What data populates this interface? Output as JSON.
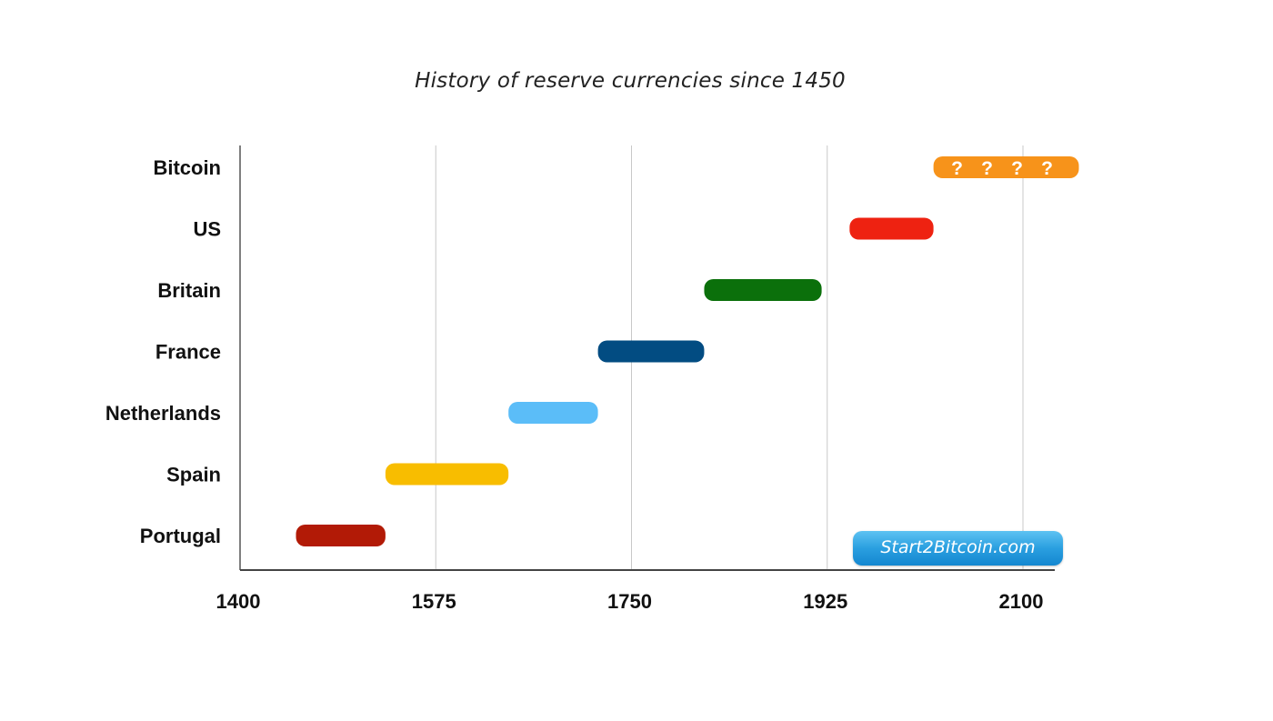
{
  "chart_data": {
    "type": "bar",
    "orientation": "horizontal-range",
    "title": "History of reserve currencies since 1450",
    "xlabel": "",
    "ylabel": "",
    "xlim": [
      1400,
      2100
    ],
    "x_ticks": [
      "1400",
      "1575",
      "1750",
      "1925",
      "2100"
    ],
    "grid": true,
    "categories": [
      "Bitcoin",
      "US",
      "Britain",
      "France",
      "Netherlands",
      "Spain",
      "Portugal"
    ],
    "ranges": [
      {
        "name": "Bitcoin",
        "start": 2020,
        "end": 2150,
        "color": "#f7931a",
        "labels": [
          "?",
          "?",
          "?",
          "?"
        ]
      },
      {
        "name": "US",
        "start": 1945,
        "end": 2020,
        "color": "#ee2211"
      },
      {
        "name": "Britain",
        "start": 1815,
        "end": 1920,
        "color": "#0b700b"
      },
      {
        "name": "France",
        "start": 1720,
        "end": 1815,
        "color": "#024c82"
      },
      {
        "name": "Netherlands",
        "start": 1640,
        "end": 1720,
        "color": "#5bbdf8"
      },
      {
        "name": "Spain",
        "start": 1530,
        "end": 1640,
        "color": "#f8bd00"
      },
      {
        "name": "Portugal",
        "start": 1450,
        "end": 1530,
        "color": "#b21a06"
      }
    ]
  },
  "watermark": "Start2Bitcoin.com"
}
